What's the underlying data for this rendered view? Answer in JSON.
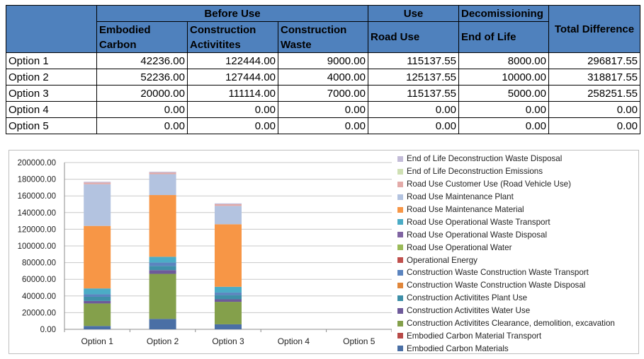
{
  "table": {
    "group_headers": {
      "before_use": "Before Use",
      "use": "Use",
      "decommissioning": "Decomissioning",
      "total_difference": "Total Difference"
    },
    "sub_headers": {
      "embodied_carbon": "Embodied Carbon",
      "construction_activities": "Construction Activitites",
      "construction_waste": "Construction Waste",
      "road_use": "Road Use",
      "end_of_life": "End of Life"
    },
    "rows": [
      {
        "option": "Option 1",
        "values": [
          "42236.00",
          "122444.00",
          "9000.00",
          "115137.55",
          "8000.00",
          "296817.55"
        ]
      },
      {
        "option": "Option 2",
        "values": [
          "52236.00",
          "127444.00",
          "4000.00",
          "125137.55",
          "10000.00",
          "318817.55"
        ]
      },
      {
        "option": "Option 3",
        "values": [
          "20000.00",
          "111114.00",
          "7000.00",
          "115137.55",
          "5000.00",
          "258251.55"
        ]
      },
      {
        "option": "Option 4",
        "values": [
          "0.00",
          "0.00",
          "0.00",
          "0.00",
          "0.00",
          "0.00"
        ]
      },
      {
        "option": "Option 5",
        "values": [
          "0.00",
          "0.00",
          "0.00",
          "0.00",
          "0.00",
          "0.00"
        ]
      }
    ]
  },
  "chart_data": {
    "type": "bar",
    "stacked": true,
    "categories": [
      "Option 1",
      "Option 2",
      "Option 3",
      "Option 4",
      "Option 5"
    ],
    "ylim": [
      0,
      200000
    ],
    "ytick_step": 20000,
    "ytick_labels": [
      "0.00",
      "20000.00",
      "40000.00",
      "60000.00",
      "80000.00",
      "100000.00",
      "120000.00",
      "140000.00",
      "160000.00",
      "180000.00",
      "200000.00"
    ],
    "grid": true,
    "legend_position": "right",
    "series": [
      {
        "name": "Embodied Carbon Materials",
        "color": "#4a6fa5",
        "values": [
          4000,
          12500,
          6000,
          0,
          0
        ]
      },
      {
        "name": "Embodied Carbon Material Transport",
        "color": "#b84a48",
        "values": [
          0,
          0,
          0,
          0,
          0
        ]
      },
      {
        "name": "Construction Activitites Clearance, demolition, excavation",
        "color": "#84a04b",
        "values": [
          27000,
          54000,
          27000,
          0,
          0
        ]
      },
      {
        "name": "Construction Activitites Water Use",
        "color": "#6e5a9a",
        "values": [
          3000,
          4500,
          3000,
          0,
          0
        ]
      },
      {
        "name": "Construction Activitites Plant Use",
        "color": "#3e8fa8",
        "values": [
          5000,
          5000,
          5000,
          0,
          0
        ]
      },
      {
        "name": "Construction Waste Construction Waste Disposal",
        "color": "#e0863a",
        "values": [
          0,
          0,
          0,
          0,
          0
        ]
      },
      {
        "name": "Construction Waste Construction Waste Transport",
        "color": "#5b84bf",
        "values": [
          3000,
          4000,
          3000,
          0,
          0
        ]
      },
      {
        "name": "Operational Energy",
        "color": "#c0504d",
        "values": [
          0,
          0,
          0,
          0,
          0
        ]
      },
      {
        "name": "Road Use Operational Water",
        "color": "#9bbb59",
        "values": [
          0,
          0,
          0,
          0,
          0
        ]
      },
      {
        "name": "Road Use Operational Waste Disposal",
        "color": "#8064a2",
        "values": [
          0,
          0,
          0,
          0,
          0
        ]
      },
      {
        "name": "Road Use Operational Waste Transport",
        "color": "#4bacc6",
        "values": [
          7000,
          7000,
          7000,
          0,
          0
        ]
      },
      {
        "name": "Road Use Maintenance Material",
        "color": "#f79646",
        "values": [
          75000,
          74000,
          75000,
          0,
          0
        ]
      },
      {
        "name": "Road Use Maintenance Plant",
        "color": "#b3c3e0",
        "values": [
          50000,
          25000,
          22000,
          0,
          0
        ]
      },
      {
        "name": "Road Use Customer Use (Road Vehicle Use)",
        "color": "#e3aaa8",
        "values": [
          2000,
          2000,
          2000,
          0,
          0
        ]
      },
      {
        "name": "End of Life Deconstruction Emissions",
        "color": "#cfe0b4",
        "values": [
          0,
          0,
          0,
          0,
          0
        ]
      },
      {
        "name": "End of Life Deconstruction Waste Disposal",
        "color": "#c3bcd8",
        "values": [
          1000,
          1000,
          1000,
          0,
          0
        ]
      }
    ]
  }
}
